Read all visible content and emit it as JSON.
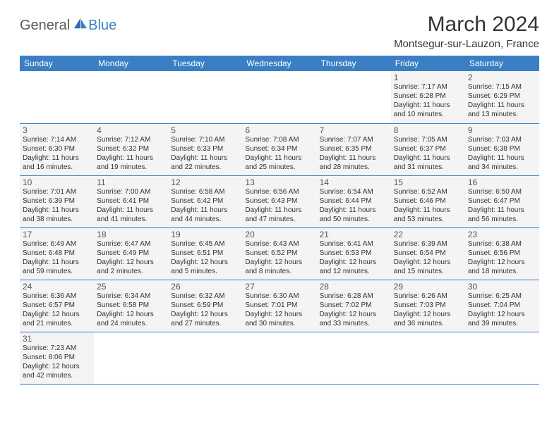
{
  "logo": {
    "part1": "General",
    "part2": "Blue"
  },
  "title": "March 2024",
  "location": "Montsegur-sur-Lauzon, France",
  "colors": {
    "header_bg": "#3a7fc4",
    "cell_bg": "#f4f4f4",
    "border": "#3a7fc4"
  },
  "day_headers": [
    "Sunday",
    "Monday",
    "Tuesday",
    "Wednesday",
    "Thursday",
    "Friday",
    "Saturday"
  ],
  "weeks": [
    [
      null,
      null,
      null,
      null,
      null,
      {
        "n": "1",
        "sr": "Sunrise: 7:17 AM",
        "ss": "Sunset: 6:28 PM",
        "dl": "Daylight: 11 hours and 10 minutes."
      },
      {
        "n": "2",
        "sr": "Sunrise: 7:15 AM",
        "ss": "Sunset: 6:29 PM",
        "dl": "Daylight: 11 hours and 13 minutes."
      }
    ],
    [
      {
        "n": "3",
        "sr": "Sunrise: 7:14 AM",
        "ss": "Sunset: 6:30 PM",
        "dl": "Daylight: 11 hours and 16 minutes."
      },
      {
        "n": "4",
        "sr": "Sunrise: 7:12 AM",
        "ss": "Sunset: 6:32 PM",
        "dl": "Daylight: 11 hours and 19 minutes."
      },
      {
        "n": "5",
        "sr": "Sunrise: 7:10 AM",
        "ss": "Sunset: 6:33 PM",
        "dl": "Daylight: 11 hours and 22 minutes."
      },
      {
        "n": "6",
        "sr": "Sunrise: 7:08 AM",
        "ss": "Sunset: 6:34 PM",
        "dl": "Daylight: 11 hours and 25 minutes."
      },
      {
        "n": "7",
        "sr": "Sunrise: 7:07 AM",
        "ss": "Sunset: 6:35 PM",
        "dl": "Daylight: 11 hours and 28 minutes."
      },
      {
        "n": "8",
        "sr": "Sunrise: 7:05 AM",
        "ss": "Sunset: 6:37 PM",
        "dl": "Daylight: 11 hours and 31 minutes."
      },
      {
        "n": "9",
        "sr": "Sunrise: 7:03 AM",
        "ss": "Sunset: 6:38 PM",
        "dl": "Daylight: 11 hours and 34 minutes."
      }
    ],
    [
      {
        "n": "10",
        "sr": "Sunrise: 7:01 AM",
        "ss": "Sunset: 6:39 PM",
        "dl": "Daylight: 11 hours and 38 minutes."
      },
      {
        "n": "11",
        "sr": "Sunrise: 7:00 AM",
        "ss": "Sunset: 6:41 PM",
        "dl": "Daylight: 11 hours and 41 minutes."
      },
      {
        "n": "12",
        "sr": "Sunrise: 6:58 AM",
        "ss": "Sunset: 6:42 PM",
        "dl": "Daylight: 11 hours and 44 minutes."
      },
      {
        "n": "13",
        "sr": "Sunrise: 6:56 AM",
        "ss": "Sunset: 6:43 PM",
        "dl": "Daylight: 11 hours and 47 minutes."
      },
      {
        "n": "14",
        "sr": "Sunrise: 6:54 AM",
        "ss": "Sunset: 6:44 PM",
        "dl": "Daylight: 11 hours and 50 minutes."
      },
      {
        "n": "15",
        "sr": "Sunrise: 6:52 AM",
        "ss": "Sunset: 6:46 PM",
        "dl": "Daylight: 11 hours and 53 minutes."
      },
      {
        "n": "16",
        "sr": "Sunrise: 6:50 AM",
        "ss": "Sunset: 6:47 PM",
        "dl": "Daylight: 11 hours and 56 minutes."
      }
    ],
    [
      {
        "n": "17",
        "sr": "Sunrise: 6:49 AM",
        "ss": "Sunset: 6:48 PM",
        "dl": "Daylight: 11 hours and 59 minutes."
      },
      {
        "n": "18",
        "sr": "Sunrise: 6:47 AM",
        "ss": "Sunset: 6:49 PM",
        "dl": "Daylight: 12 hours and 2 minutes."
      },
      {
        "n": "19",
        "sr": "Sunrise: 6:45 AM",
        "ss": "Sunset: 6:51 PM",
        "dl": "Daylight: 12 hours and 5 minutes."
      },
      {
        "n": "20",
        "sr": "Sunrise: 6:43 AM",
        "ss": "Sunset: 6:52 PM",
        "dl": "Daylight: 12 hours and 8 minutes."
      },
      {
        "n": "21",
        "sr": "Sunrise: 6:41 AM",
        "ss": "Sunset: 6:53 PM",
        "dl": "Daylight: 12 hours and 12 minutes."
      },
      {
        "n": "22",
        "sr": "Sunrise: 6:39 AM",
        "ss": "Sunset: 6:54 PM",
        "dl": "Daylight: 12 hours and 15 minutes."
      },
      {
        "n": "23",
        "sr": "Sunrise: 6:38 AM",
        "ss": "Sunset: 6:56 PM",
        "dl": "Daylight: 12 hours and 18 minutes."
      }
    ],
    [
      {
        "n": "24",
        "sr": "Sunrise: 6:36 AM",
        "ss": "Sunset: 6:57 PM",
        "dl": "Daylight: 12 hours and 21 minutes."
      },
      {
        "n": "25",
        "sr": "Sunrise: 6:34 AM",
        "ss": "Sunset: 6:58 PM",
        "dl": "Daylight: 12 hours and 24 minutes."
      },
      {
        "n": "26",
        "sr": "Sunrise: 6:32 AM",
        "ss": "Sunset: 6:59 PM",
        "dl": "Daylight: 12 hours and 27 minutes."
      },
      {
        "n": "27",
        "sr": "Sunrise: 6:30 AM",
        "ss": "Sunset: 7:01 PM",
        "dl": "Daylight: 12 hours and 30 minutes."
      },
      {
        "n": "28",
        "sr": "Sunrise: 6:28 AM",
        "ss": "Sunset: 7:02 PM",
        "dl": "Daylight: 12 hours and 33 minutes."
      },
      {
        "n": "29",
        "sr": "Sunrise: 6:26 AM",
        "ss": "Sunset: 7:03 PM",
        "dl": "Daylight: 12 hours and 36 minutes."
      },
      {
        "n": "30",
        "sr": "Sunrise: 6:25 AM",
        "ss": "Sunset: 7:04 PM",
        "dl": "Daylight: 12 hours and 39 minutes."
      }
    ],
    [
      {
        "n": "31",
        "sr": "Sunrise: 7:23 AM",
        "ss": "Sunset: 8:06 PM",
        "dl": "Daylight: 12 hours and 42 minutes."
      },
      null,
      null,
      null,
      null,
      null,
      null
    ]
  ]
}
